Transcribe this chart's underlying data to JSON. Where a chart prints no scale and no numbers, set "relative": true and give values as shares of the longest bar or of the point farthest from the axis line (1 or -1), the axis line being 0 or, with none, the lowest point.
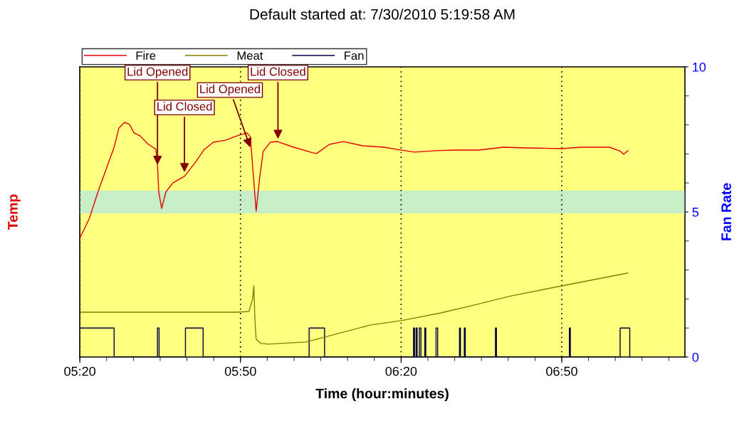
{
  "chart_data": {
    "type": "line",
    "title": "Default started at: 7/30/2010 5:19:58 AM",
    "xlabel": "Time (hour:minutes)",
    "ylabel": "Temp",
    "y2label": "Fan Rate",
    "relative": true,
    "xlim": [
      5.333,
      7.2167
    ],
    "xticks": [
      {
        "value": 5.3333,
        "label": "05:20"
      },
      {
        "value": 5.8333,
        "label": "05:50"
      },
      {
        "value": 6.3333,
        "label": "06:20"
      },
      {
        "value": 6.8333,
        "label": "06:50"
      }
    ],
    "y2lim": [
      0,
      10
    ],
    "y2ticks": [
      0,
      5,
      10
    ],
    "grid": "x",
    "legend": "top left",
    "line_style": "solid",
    "marker": "none",
    "bands": [
      {
        "axis": "y",
        "from": 0.612,
        "to": 0.709,
        "color": "#c8eec8"
      }
    ],
    "annotations": [
      {
        "text": "Lid Opened",
        "x": 5.575,
        "y": 0.81
      },
      {
        "text": "Lid Closed",
        "x": 5.659,
        "y": 0.779
      },
      {
        "text": "Lid Opened",
        "x": 5.866,
        "y": 0.885
      },
      {
        "text": "Lid Closed",
        "x": 5.95,
        "y": 0.921
      }
    ],
    "series": [
      {
        "name": "Fire",
        "color": "#e00000",
        "x": [
          5.333,
          5.362,
          5.395,
          5.44,
          5.455,
          5.473,
          5.488,
          5.502,
          5.521,
          5.544,
          5.57,
          5.575,
          5.579,
          5.588,
          5.601,
          5.623,
          5.659,
          5.69,
          5.721,
          5.749,
          5.787,
          5.822,
          5.853,
          5.864,
          5.871,
          5.882,
          5.893,
          5.904,
          5.926,
          5.948,
          5.999,
          6.059,
          6.07,
          6.11,
          6.154,
          6.214,
          6.28,
          6.331,
          6.375,
          6.442,
          6.501,
          6.574,
          6.652,
          6.723,
          6.833,
          6.893,
          6.982,
          7.017,
          7.026,
          7.039
        ],
        "values": [
          0.506,
          0.588,
          0.724,
          0.894,
          0.976,
          1.0,
          0.991,
          0.955,
          0.942,
          0.909,
          0.885,
          0.815,
          0.703,
          0.633,
          0.703,
          0.742,
          0.77,
          0.824,
          0.885,
          0.915,
          0.924,
          0.942,
          0.955,
          0.939,
          0.815,
          0.621,
          0.764,
          0.876,
          0.915,
          0.918,
          0.894,
          0.87,
          0.867,
          0.906,
          0.918,
          0.9,
          0.894,
          0.882,
          0.873,
          0.879,
          0.882,
          0.882,
          0.894,
          0.891,
          0.888,
          0.894,
          0.894,
          0.876,
          0.864,
          0.879
        ]
      },
      {
        "name": "Meat",
        "color": "#808000",
        "x": [
          5.336,
          5.822,
          5.86,
          5.871,
          5.875,
          5.878,
          5.882,
          5.897,
          5.92,
          6.037,
          6.088,
          6.236,
          6.333,
          6.457,
          6.568,
          6.678,
          6.833,
          7.039
        ],
        "values": [
          0.191,
          0.191,
          0.194,
          0.248,
          0.303,
          0.167,
          0.076,
          0.058,
          0.055,
          0.064,
          0.082,
          0.136,
          0.155,
          0.188,
          0.224,
          0.261,
          0.303,
          0.358
        ]
      },
      {
        "name": "Fan",
        "color": "#000040",
        "type": "step",
        "axis": "y2",
        "x": [
          5.333,
          5.44,
          5.575,
          5.58,
          5.662,
          5.717,
          6.047,
          6.095,
          6.372,
          6.375,
          6.38,
          6.383,
          6.39,
          6.395,
          6.407,
          6.41,
          6.442,
          6.447,
          6.515,
          6.518,
          6.53,
          6.533,
          6.627,
          6.63,
          6.857,
          6.86,
          7.015,
          7.045
        ],
        "values": [
          1,
          0,
          1,
          0,
          1,
          0,
          1,
          0,
          1,
          0,
          1,
          0,
          1,
          0,
          1,
          0,
          1,
          0,
          1,
          0,
          1,
          0,
          1,
          0,
          1,
          0,
          1,
          0
        ]
      }
    ]
  }
}
